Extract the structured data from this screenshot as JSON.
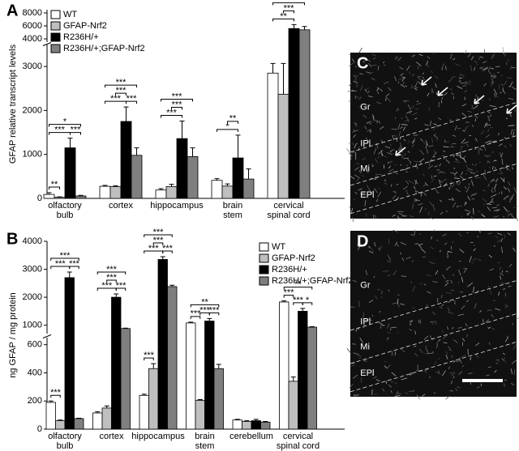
{
  "panels": [
    "A",
    "B"
  ],
  "chart_data": [
    {
      "type": "bar",
      "ylabel": "GFAP relative transcript levels",
      "categories": [
        "olfactory\nbulb",
        "cortex",
        "hippocampus",
        "brain\nstem",
        "cervical\nspinal cord"
      ],
      "y_segments": [
        {
          "ylim": [
            0,
            3500
          ],
          "yticks": [
            0,
            1000,
            2000,
            3000
          ]
        },
        {
          "ylim": [
            3500,
            8500
          ],
          "yticks": [
            4000,
            6000,
            8000
          ]
        }
      ],
      "legend": "top-left",
      "series": [
        {
          "name": "WT",
          "color": "#ffffff",
          "values": [
            90,
            275,
            190,
            410,
            2850
          ],
          "errors": [
            40,
            20,
            30,
            40,
            220
          ]
        },
        {
          "name": "GFAP-Nrf2",
          "color": "#bfbfbf",
          "values": [
            25,
            270,
            270,
            280,
            2370
          ],
          "errors": [
            10,
            15,
            50,
            50,
            700
          ]
        },
        {
          "name": "R236H/+",
          "color": "#000000",
          "values": [
            1150,
            1750,
            1360,
            920,
            5600
          ],
          "errors": [
            220,
            330,
            400,
            520,
            600
          ]
        },
        {
          "name": "R236H/+;GFAP-Nrf2",
          "color": "#7f7f7f",
          "values": [
            55,
            980,
            950,
            440,
            5400
          ],
          "errors": [
            15,
            170,
            200,
            230,
            500
          ]
        }
      ],
      "annotations": [
        {
          "text": "**",
          "category": 0,
          "from": 0,
          "to": 1
        },
        {
          "text": "***",
          "category": 0,
          "from": 0,
          "to": 2
        },
        {
          "text": "***",
          "category": 0,
          "from": 2,
          "to": 3
        },
        {
          "text": "*",
          "category": 0,
          "from": 0,
          "to": 3
        },
        {
          "text": "***",
          "category": 1,
          "from": 0,
          "to": 2
        },
        {
          "text": "***",
          "category": 1,
          "from": 2,
          "to": 3
        },
        {
          "text": "***",
          "category": 1,
          "from": 1,
          "to": 2
        },
        {
          "text": "***",
          "category": 1,
          "from": 0,
          "to": 3
        },
        {
          "text": "***",
          "category": 2,
          "from": 0,
          "to": 2
        },
        {
          "text": "***",
          "category": 2,
          "from": 1,
          "to": 2
        },
        {
          "text": "***",
          "category": 2,
          "from": 0,
          "to": 3
        },
        {
          "text": "*",
          "category": 3,
          "from": 0,
          "to": 2
        },
        {
          "text": "**",
          "category": 3,
          "from": 1,
          "to": 2
        },
        {
          "text": "**",
          "category": 4,
          "from": 0,
          "to": 2
        },
        {
          "text": "***",
          "category": 4,
          "from": 1,
          "to": 2
        },
        {
          "text": "**",
          "category": 4,
          "from": 0,
          "to": 3
        }
      ]
    },
    {
      "type": "bar",
      "ylabel": "ng GFAP / mg protein",
      "categories": [
        "olfactory\nbulb",
        "cortex",
        "hippocampus",
        "brain\nstem",
        "cerebellum",
        "cervical\nspinal cord"
      ],
      "y_segments": [
        {
          "ylim": [
            0,
            650
          ],
          "yticks": [
            0,
            200,
            400,
            600
          ]
        },
        {
          "ylim": [
            700,
            4000
          ],
          "yticks": [
            1000,
            2000,
            3000,
            4000
          ]
        }
      ],
      "legend": "top-right",
      "series": [
        {
          "name": "WT",
          "color": "#ffffff",
          "values": [
            190,
            115,
            240,
            1080,
            65,
            1830
          ],
          "errors": [
            10,
            8,
            8,
            30,
            5,
            40
          ]
        },
        {
          "name": "GFAP-Nrf2",
          "color": "#bfbfbf",
          "values": [
            60,
            150,
            430,
            205,
            55,
            340
          ],
          "errors": [
            5,
            15,
            35,
            5,
            5,
            30
          ]
        },
        {
          "name": "R236H/+",
          "color": "#000000",
          "values": [
            2700,
            2000,
            3350,
            1150,
            60,
            1500
          ],
          "errors": [
            200,
            120,
            100,
            90,
            10,
            100
          ]
        },
        {
          "name": "R236H/+;GFAP-Nrf2",
          "color": "#7f7f7f",
          "values": [
            75,
            880,
            2380,
            430,
            50,
            930
          ],
          "errors": [
            3,
            15,
            50,
            30,
            5,
            20
          ]
        }
      ],
      "annotations": [
        {
          "text": "***",
          "category": 0,
          "from": 0,
          "to": 1
        },
        {
          "text": "***",
          "category": 0,
          "from": 0,
          "to": 2
        },
        {
          "text": "***",
          "category": 0,
          "from": 2,
          "to": 3
        },
        {
          "text": "***",
          "category": 0,
          "from": 0,
          "to": 3
        },
        {
          "text": "***",
          "category": 1,
          "from": 0,
          "to": 2
        },
        {
          "text": "***",
          "category": 1,
          "from": 2,
          "to": 3
        },
        {
          "text": "***",
          "category": 1,
          "from": 1,
          "to": 2
        },
        {
          "text": "***",
          "category": 1,
          "from": 0,
          "to": 3
        },
        {
          "text": "***",
          "category": 2,
          "from": 0,
          "to": 1
        },
        {
          "text": "***",
          "category": 2,
          "from": 0,
          "to": 2
        },
        {
          "text": "***",
          "category": 2,
          "from": 2,
          "to": 3
        },
        {
          "text": "***",
          "category": 2,
          "from": 1,
          "to": 2
        },
        {
          "text": "***",
          "category": 2,
          "from": 0,
          "to": 3
        },
        {
          "text": "***",
          "category": 3,
          "from": 0,
          "to": 1
        },
        {
          "text": "***",
          "category": 3,
          "from": 2,
          "to": 3
        },
        {
          "text": "***",
          "category": 3,
          "from": 1,
          "to": 2
        },
        {
          "text": "**",
          "category": 3,
          "from": 0,
          "to": 3
        },
        {
          "text": "*",
          "category": 5,
          "from": 2,
          "to": 3
        },
        {
          "text": "***",
          "category": 5,
          "from": 0,
          "to": 1
        },
        {
          "text": "***",
          "category": 5,
          "from": 1,
          "to": 2
        },
        {
          "text": "**",
          "category": 5,
          "from": 0,
          "to": 3
        }
      ]
    }
  ],
  "images": [
    {
      "label": "C",
      "layers": [
        "Gr",
        "IPl",
        "Mi",
        "EPl"
      ]
    },
    {
      "label": "D",
      "layers": [
        "Gr",
        "IPl",
        "Mi",
        "EPl"
      ]
    }
  ]
}
